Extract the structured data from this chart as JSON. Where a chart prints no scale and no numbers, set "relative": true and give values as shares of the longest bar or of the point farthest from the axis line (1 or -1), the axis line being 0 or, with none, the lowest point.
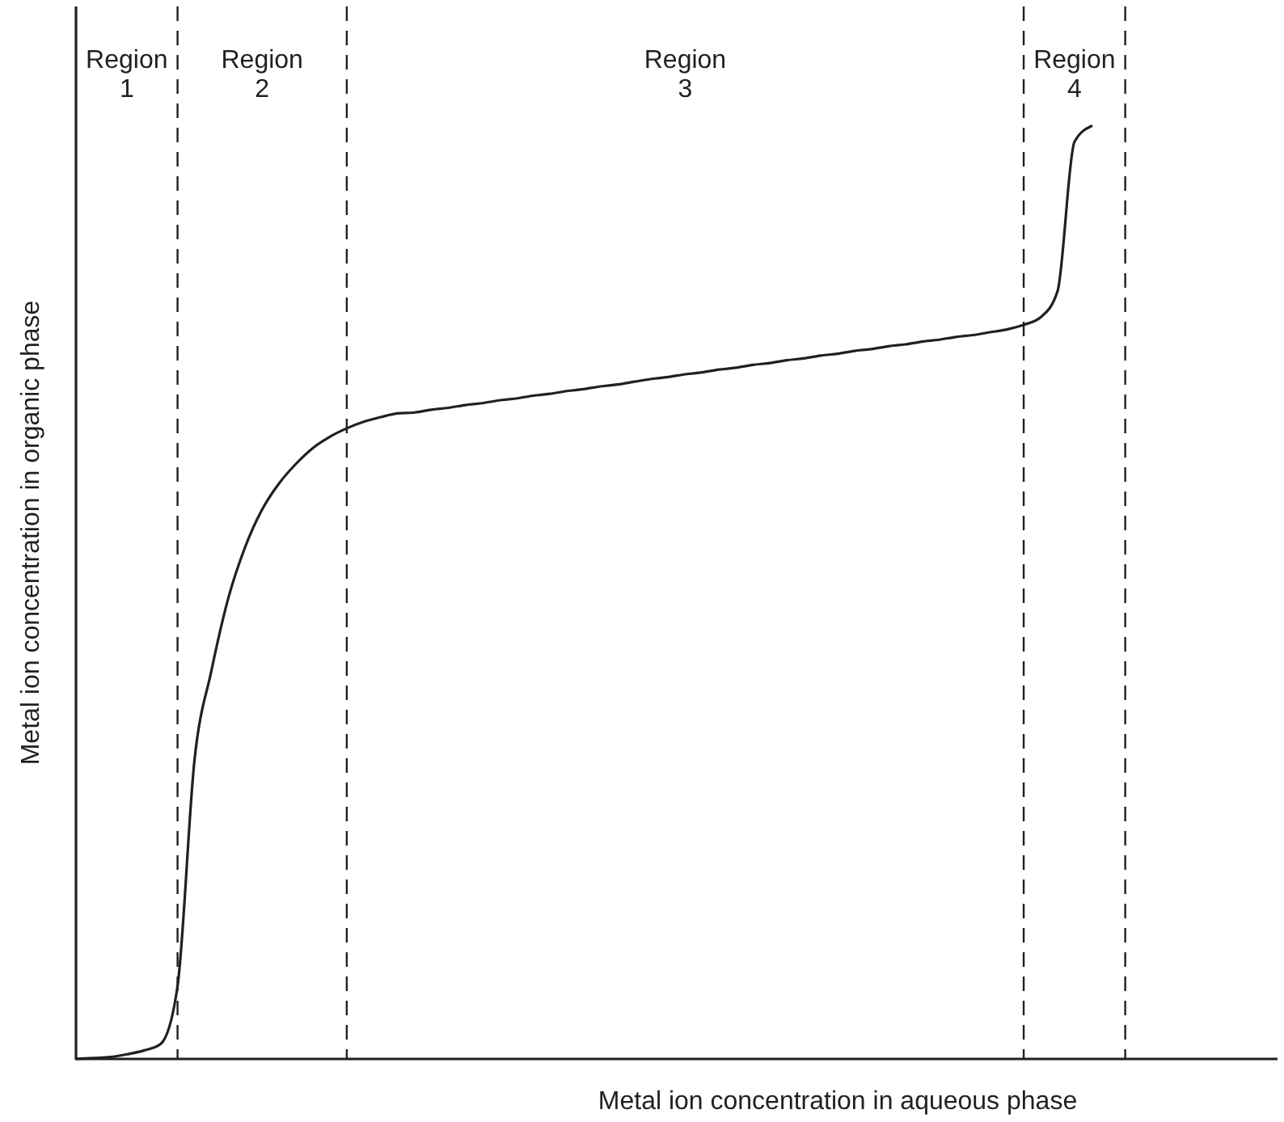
{
  "chart_data": {
    "type": "line",
    "relative": true,
    "xlabel": "Metal ion concentration in aqueous phase",
    "ylabel": "Metal ion concentration in organic phase",
    "categories": [
      null,
      null,
      null,
      null,
      null,
      null,
      null,
      null,
      null,
      null,
      null,
      null,
      null,
      null,
      null,
      null,
      null,
      null,
      null,
      null,
      null,
      null,
      null,
      null,
      null,
      null,
      null,
      null,
      null,
      null,
      null,
      null,
      null,
      null,
      null,
      null,
      null,
      null,
      null,
      null,
      null,
      null,
      null,
      null,
      null,
      null,
      null,
      null,
      null,
      null,
      null,
      null,
      null,
      null,
      null,
      null,
      null,
      null,
      null,
      null,
      null,
      null,
      null,
      null,
      null,
      null,
      null,
      null,
      null,
      null,
      null,
      null
    ],
    "series": [
      {
        "color": "#231f20",
        "values": [
          0,
          0.001,
          0.002,
          0.005,
          0.009,
          0.016,
          0.078,
          0.32,
          0.416,
          0.494,
          0.549,
          0.589,
          0.617,
          0.638,
          0.655,
          0.667,
          0.676,
          0.683,
          0.688,
          0.692,
          0.693,
          0.696,
          0.698,
          0.701,
          0.703,
          0.706,
          0.708,
          0.711,
          0.713,
          0.716,
          0.718,
          0.721,
          0.723,
          0.726,
          0.729,
          0.731,
          0.734,
          0.736,
          0.739,
          0.741,
          0.744,
          0.746,
          0.749,
          0.751,
          0.754,
          0.756,
          0.759,
          0.761,
          0.764,
          0.766,
          0.769,
          0.771,
          0.774,
          0.776,
          0.779,
          0.782,
          0.787,
          0.795,
          0.823,
          0.983,
          1,
          null,
          null,
          null,
          null,
          null,
          null,
          null,
          null,
          null,
          null,
          null
        ]
      }
    ],
    "annotations": [
      "Region 1",
      "Region 2",
      "Region 3",
      "Region 4"
    ],
    "marker": "none",
    "line_style": "solid",
    "grid": "x"
  }
}
